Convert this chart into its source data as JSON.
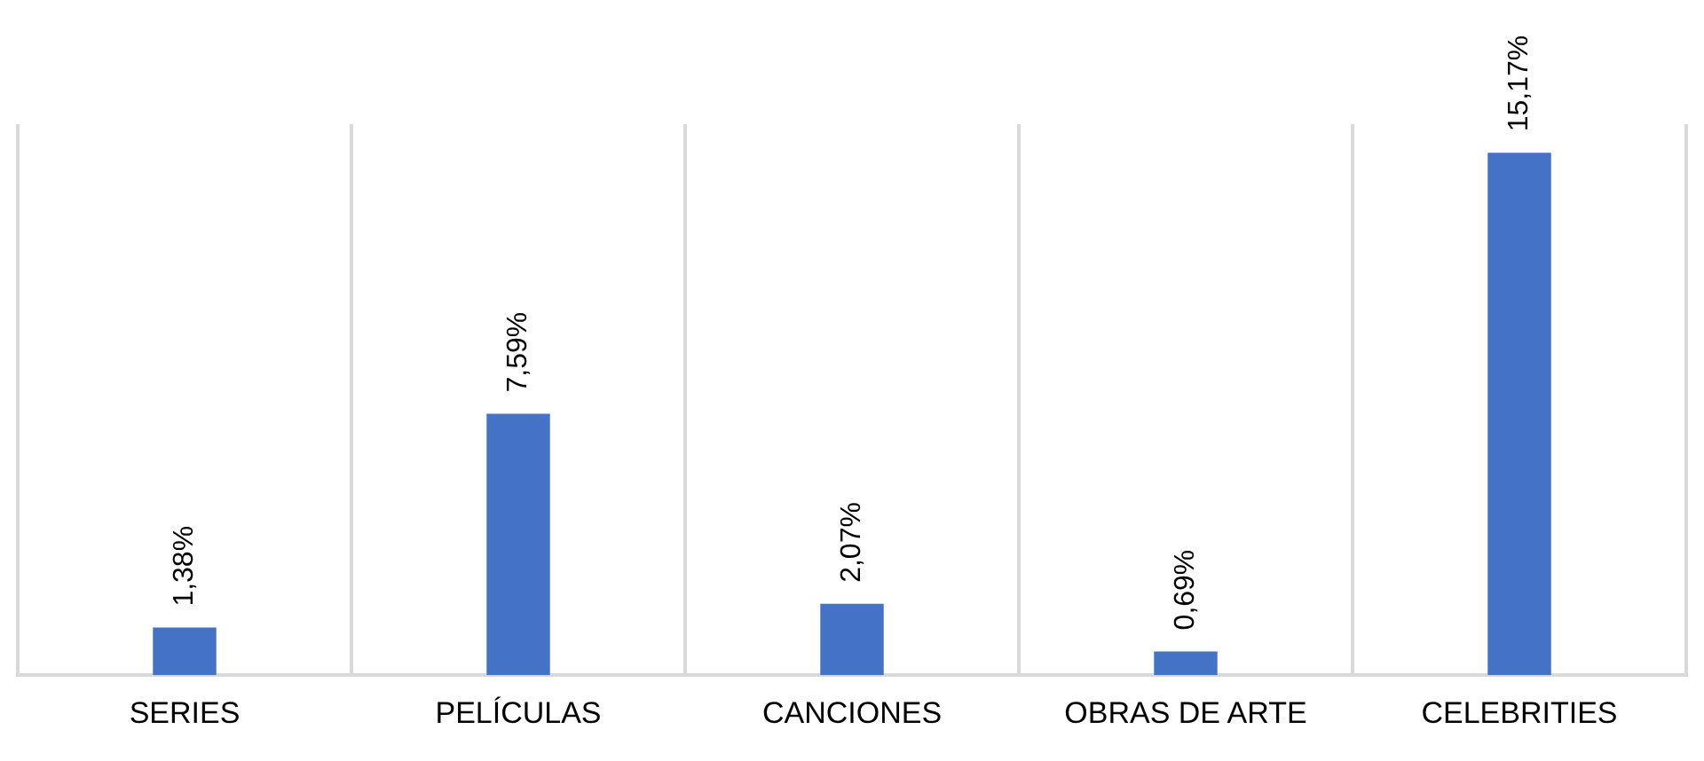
{
  "chart_data": {
    "type": "bar",
    "categories": [
      "SERIES",
      "PELÍCULAS",
      "CANCIONES",
      "OBRAS DE ARTE",
      "CELEBRITIES"
    ],
    "values": [
      1.38,
      7.59,
      2.07,
      0.69,
      15.17
    ],
    "value_labels": [
      "1,38%",
      "7,59%",
      "2,07%",
      "0,69%",
      "15,17%"
    ],
    "color": "#4472c4",
    "grid": "x",
    "legend": false
  }
}
